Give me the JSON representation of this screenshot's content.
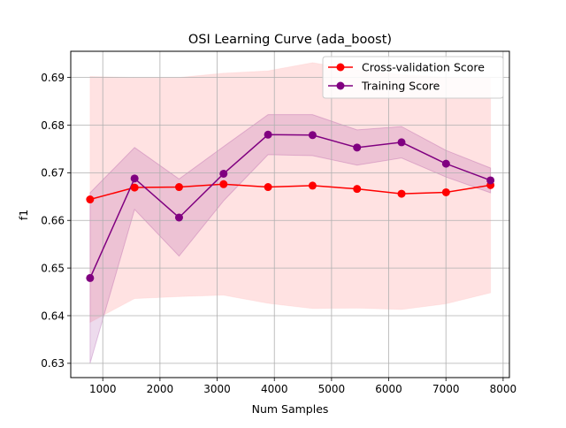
{
  "chart_data": {
    "type": "line",
    "title": "OSI Learning Curve (ada_boost)",
    "xlabel": "Num Samples",
    "ylabel": "f1",
    "xlim": [
      440,
      8110
    ],
    "ylim": [
      0.627,
      0.6955
    ],
    "x_ticks": [
      1000,
      2000,
      3000,
      4000,
      5000,
      6000,
      7000,
      8000
    ],
    "x_tick_labels": [
      "1000",
      "2000",
      "3000",
      "4000",
      "5000",
      "6000",
      "7000",
      "8000"
    ],
    "y_ticks": [
      0.63,
      0.64,
      0.65,
      0.66,
      0.67,
      0.68,
      0.69
    ],
    "y_tick_labels": [
      "0.63",
      "0.64",
      "0.65",
      "0.66",
      "0.67",
      "0.68",
      "0.69"
    ],
    "grid": true,
    "legend_position": "top-right",
    "x": [
      778,
      1556,
      2334,
      3112,
      3890,
      4668,
      5446,
      6224,
      7002,
      7780
    ],
    "series": [
      {
        "name": "Cross-validation Score",
        "color": "#ff0000",
        "band_color": "#ffb3b3",
        "values": [
          0.6644,
          0.6669,
          0.667,
          0.6676,
          0.667,
          0.6673,
          0.6666,
          0.6656,
          0.6659,
          0.6674
        ],
        "upper": [
          0.6902,
          0.69,
          0.69,
          0.6909,
          0.6914,
          0.6931,
          0.6916,
          0.6906,
          0.69,
          0.69
        ],
        "lower": [
          0.6386,
          0.6436,
          0.644,
          0.6443,
          0.6426,
          0.6415,
          0.6416,
          0.6413,
          0.6425,
          0.6448
        ]
      },
      {
        "name": "Training Score",
        "color": "#800080",
        "band_color": "#800080",
        "values": [
          0.6479,
          0.6688,
          0.6606,
          0.6698,
          0.678,
          0.6779,
          0.6753,
          0.6764,
          0.6719,
          0.6684
        ],
        "upper": [
          0.6658,
          0.6753,
          0.6687,
          0.6755,
          0.6822,
          0.6822,
          0.679,
          0.6797,
          0.6747,
          0.671
        ],
        "lower": [
          0.63,
          0.6623,
          0.6525,
          0.6641,
          0.6738,
          0.6736,
          0.6716,
          0.6731,
          0.6691,
          0.6658
        ]
      }
    ]
  }
}
